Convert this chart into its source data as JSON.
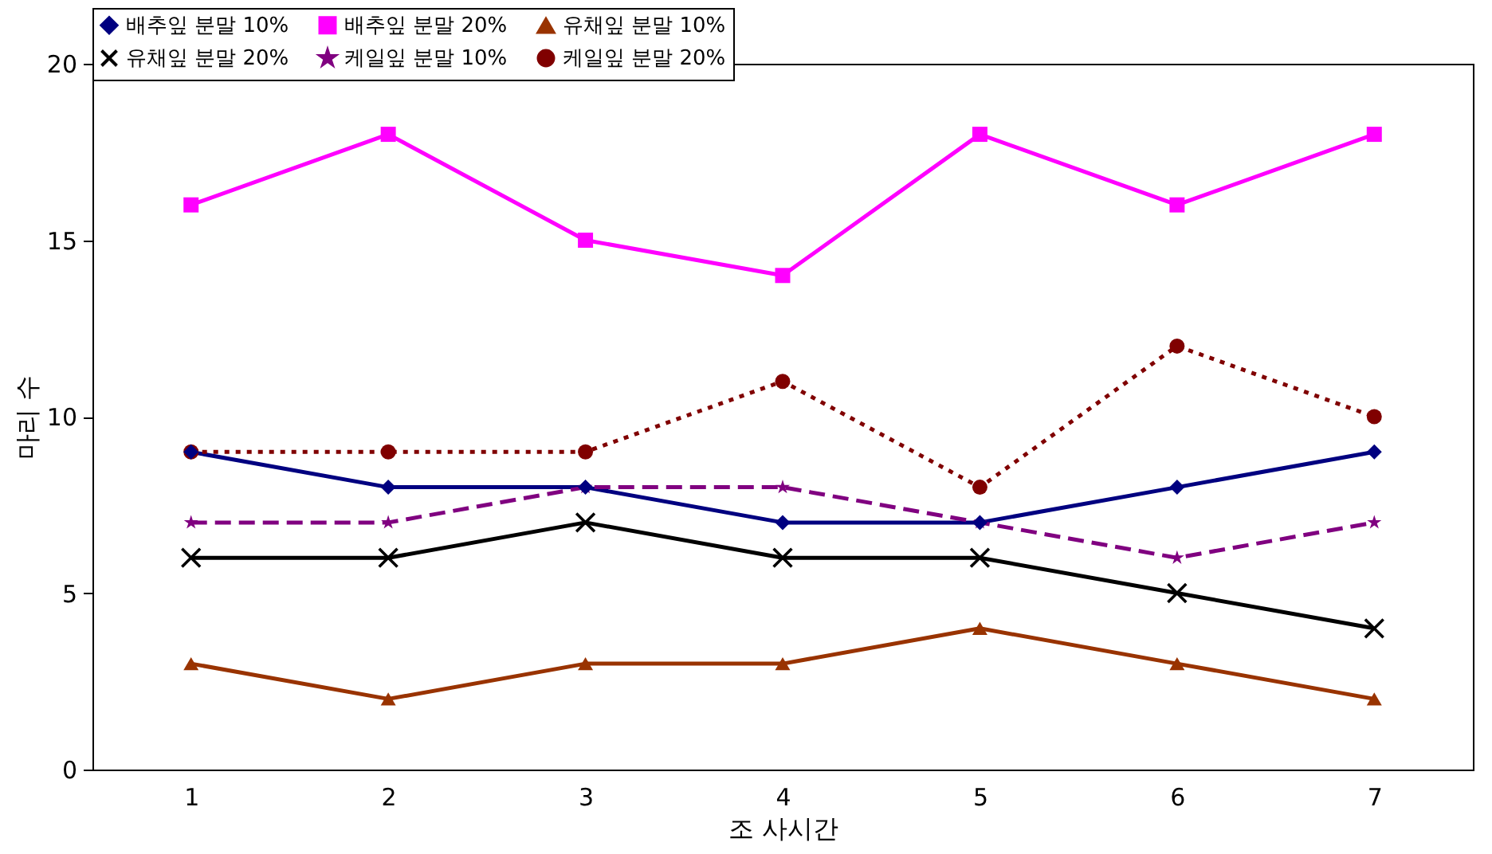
{
  "chart_data": {
    "type": "line",
    "xlabel": "조 사시간",
    "ylabel": "마리 수",
    "categories": [
      "1",
      "2",
      "3",
      "4",
      "5",
      "6",
      "7"
    ],
    "ylim": [
      0,
      20
    ],
    "yticks": [
      0,
      5,
      10,
      15,
      20
    ],
    "grid": false,
    "legend": "top",
    "series": [
      {
        "name": "배추잎 분말 10%",
        "color": "#000080",
        "marker": "diamond",
        "line_style": "solid",
        "values": [
          9,
          8,
          8,
          7,
          7,
          8,
          9
        ]
      },
      {
        "name": "배추잎 분말 20%",
        "color": "#ff00ff",
        "marker": "square",
        "line_style": "solid",
        "values": [
          16,
          18,
          15,
          14,
          18,
          16,
          18
        ]
      },
      {
        "name": "유채잎 분말 10%",
        "color": "#993300",
        "marker": "triangle",
        "line_style": "solid",
        "values": [
          3,
          2,
          3,
          3,
          4,
          3,
          2
        ]
      },
      {
        "name": "유채잎 분말 20%",
        "color": "#000000",
        "marker": "cross",
        "line_style": "solid",
        "values": [
          6,
          6,
          7,
          6,
          6,
          5,
          4
        ]
      },
      {
        "name": "케일잎 분말 10%",
        "color": "#800080",
        "marker": "star",
        "line_style": "dashed",
        "values": [
          7,
          7,
          8,
          8,
          7,
          6,
          7
        ]
      },
      {
        "name": "케일잎 분말 20%",
        "color": "#800000",
        "marker": "circle",
        "line_style": "dotted",
        "values": [
          9,
          9,
          9,
          11,
          8,
          12,
          10
        ]
      }
    ]
  }
}
